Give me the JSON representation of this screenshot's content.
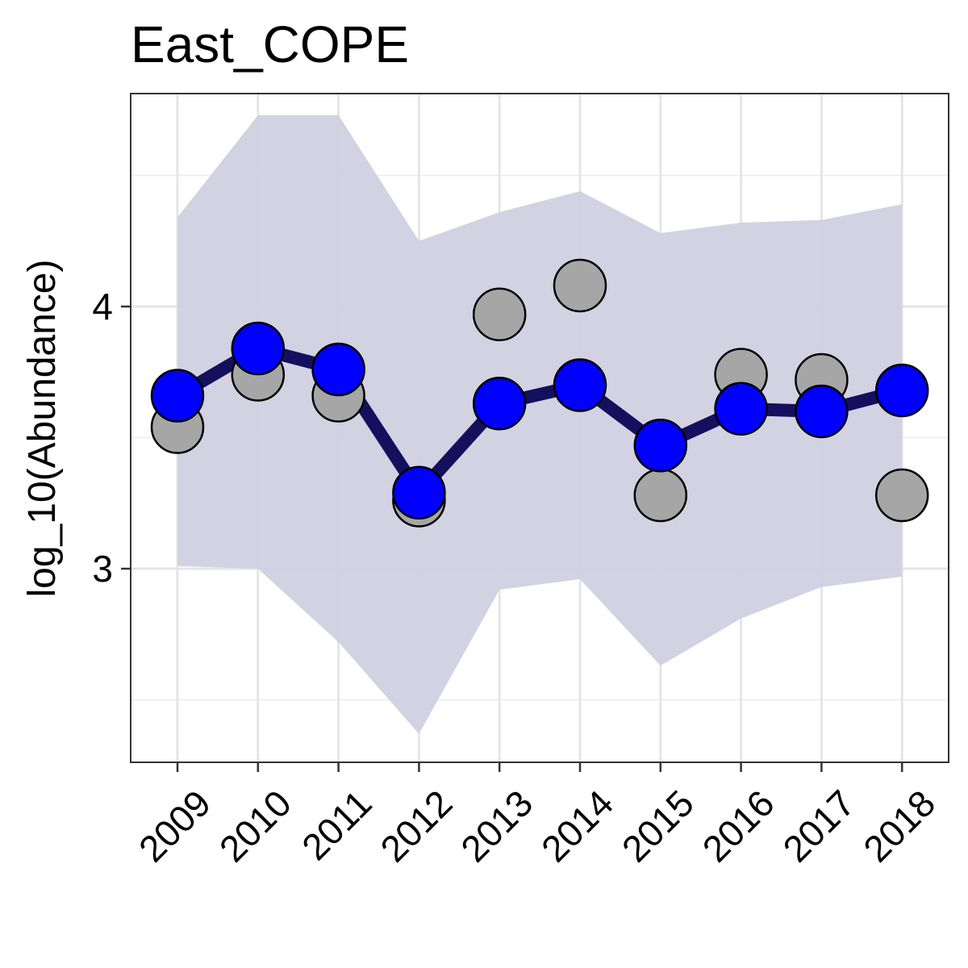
{
  "chart_data": {
    "type": "line",
    "title": "East_COPE",
    "xlabel": "",
    "ylabel": "log_10(Abundance)",
    "categories": [
      "2009",
      "2010",
      "2011",
      "2012",
      "2013",
      "2014",
      "2015",
      "2016",
      "2017",
      "2018"
    ],
    "yticks": [
      "3",
      "4"
    ],
    "ylim": [
      2.25,
      4.8
    ],
    "grid": true,
    "legend": "none",
    "series": [
      {
        "role": "ribbon",
        "lower": [
          3.01,
          3.0,
          2.72,
          2.37,
          2.92,
          2.96,
          2.63,
          2.81,
          2.93,
          2.97
        ],
        "upper": [
          4.34,
          4.73,
          4.73,
          4.25,
          4.36,
          4.44,
          4.28,
          4.32,
          4.33,
          4.39
        ],
        "color": "#d0d0e1"
      },
      {
        "role": "observed",
        "values": [
          3.54,
          3.74,
          3.66,
          3.26,
          3.97,
          4.08,
          3.28,
          3.74,
          3.72,
          3.28
        ],
        "color": "#a6a6a6"
      },
      {
        "role": "estimate",
        "values": [
          3.66,
          3.84,
          3.76,
          3.29,
          3.63,
          3.7,
          3.47,
          3.61,
          3.6,
          3.68
        ],
        "line_color": "#14105e",
        "point_color": "#0000ff"
      }
    ]
  }
}
